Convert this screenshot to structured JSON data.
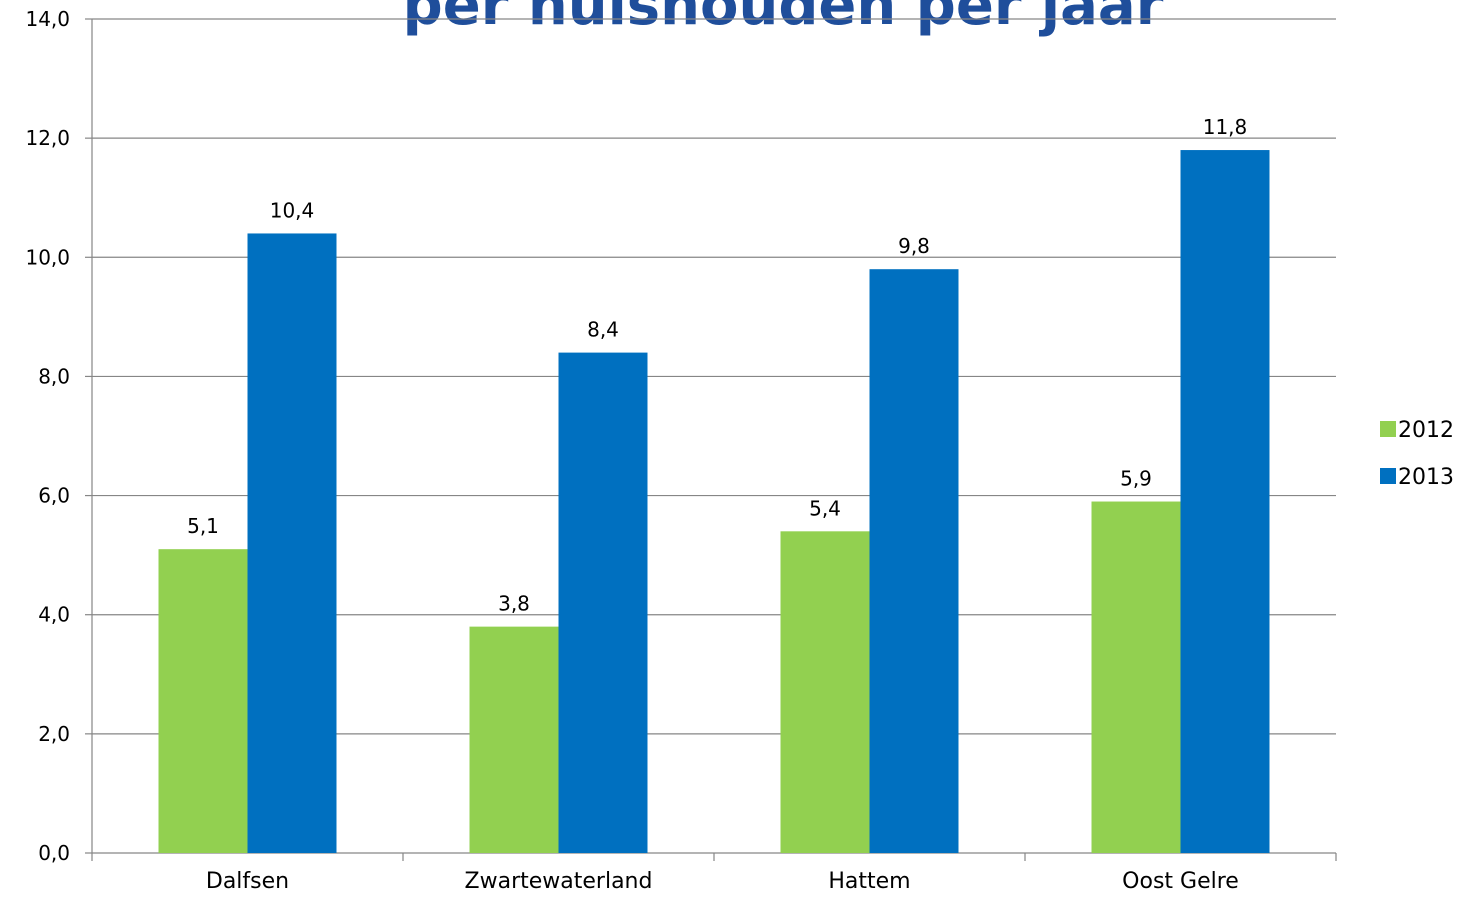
{
  "chart_data": {
    "type": "bar",
    "title": "per huishouden per jaar",
    "categories": [
      "Dalfsen",
      "Zwartewaterland",
      "Hattem",
      "Oost Gelre"
    ],
    "series": [
      {
        "name": "2012",
        "color": "#92d050",
        "values": [
          5.1,
          3.8,
          5.4,
          5.9
        ],
        "labels": [
          "5,1",
          "3,8",
          "5,4",
          "5,9"
        ]
      },
      {
        "name": "2013",
        "color": "#0070c0",
        "values": [
          10.4,
          8.4,
          9.8,
          11.8
        ],
        "labels": [
          "10,4",
          "8,4",
          "9,8",
          "11,8"
        ]
      }
    ],
    "ylim": [
      0,
      14
    ],
    "yticks": [
      0,
      2,
      4,
      6,
      8,
      10,
      12,
      14
    ],
    "ytick_labels": [
      "0,0",
      "2,0",
      "4,0",
      "6,0",
      "8,0",
      "10,0",
      "12,0",
      "14,0"
    ],
    "grid": true,
    "legend_position": "right",
    "title_color": "#1f4e9b"
  }
}
